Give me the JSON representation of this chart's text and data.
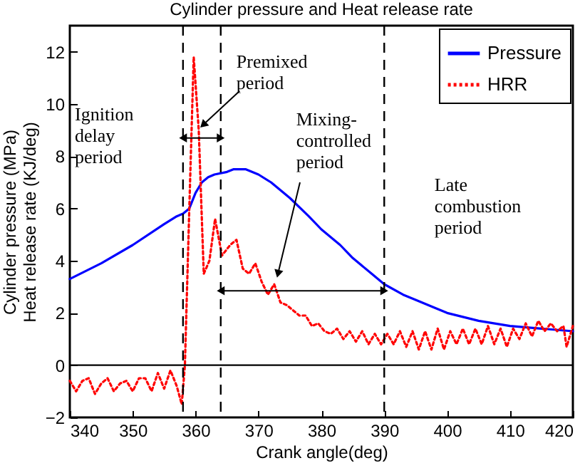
{
  "chart_data": {
    "type": "line",
    "title": "Cylinder pressure and Heat release rate",
    "xlabel": "Crank angle(deg)",
    "ylabel": "Cylinder pressure (MPa)\nHeat release rate (KJ/deg)",
    "xlim": [
      340,
      420
    ],
    "ylim": [
      -2,
      13
    ],
    "xticks": [
      340,
      350,
      360,
      370,
      380,
      390,
      400,
      410,
      420
    ],
    "yticks": [
      -2,
      0,
      2,
      4,
      6,
      8,
      10,
      12
    ],
    "grid": false,
    "legend": "top right",
    "series": [
      {
        "name": "Pressure",
        "color": "#0000ff",
        "line_style": "solid",
        "x": [
          340,
          345,
          350,
          355,
          357,
          358,
          359,
          360,
          361,
          362,
          363,
          365,
          366,
          368,
          370,
          372,
          375,
          378,
          380,
          383,
          385,
          388,
          390,
          393,
          395,
          398,
          400,
          405,
          410,
          415,
          420
        ],
        "values": [
          3.3,
          3.9,
          4.6,
          5.4,
          5.7,
          5.8,
          6.0,
          6.6,
          7.0,
          7.2,
          7.3,
          7.4,
          7.5,
          7.5,
          7.3,
          7.0,
          6.4,
          5.7,
          5.2,
          4.6,
          4.1,
          3.5,
          3.1,
          2.7,
          2.5,
          2.2,
          2.0,
          1.7,
          1.5,
          1.4,
          1.3
        ]
      },
      {
        "name": "HRR",
        "color": "#ff0000",
        "line_style": "dotted",
        "x": [
          340,
          341,
          342,
          343,
          344,
          345,
          346,
          347,
          348,
          349,
          350,
          351,
          352,
          353,
          354,
          355,
          356,
          357,
          357.8,
          358.3,
          359,
          359.7,
          360.5,
          361.3,
          362.2,
          363.1,
          364.2,
          365.5,
          366.5,
          367.5,
          368.5,
          369.5,
          370.5,
          371.5,
          372.5,
          373.5,
          374.5,
          375.5,
          376.5,
          377.5,
          378.5,
          379.5,
          380.5,
          381.5,
          382.5,
          383.5,
          384.5,
          385.5,
          386.5,
          387.5,
          388.5,
          389.5,
          390.5,
          391.5,
          392.5,
          393.5,
          394.5,
          395.5,
          396.5,
          397.5,
          398.5,
          399.5,
          400.5,
          401.5,
          402.5,
          403.5,
          404.5,
          405.5,
          406.5,
          407.5,
          408.5,
          409.5,
          410.5,
          411.5,
          412.5,
          413.5,
          414.5,
          415.5,
          416.5,
          417.5,
          418.5,
          419,
          420
        ],
        "values": [
          -0.6,
          -1.0,
          -0.6,
          -0.5,
          -1.1,
          -0.7,
          -0.5,
          -1.0,
          -0.7,
          -0.6,
          -1.0,
          -0.5,
          -0.5,
          -1.0,
          -0.3,
          -0.9,
          -0.2,
          -0.8,
          -1.5,
          0,
          6,
          11.8,
          9,
          3.5,
          4,
          5.6,
          4.2,
          4.6,
          4.8,
          3.7,
          3.5,
          3.9,
          3.2,
          2.7,
          3.1,
          2.4,
          2.3,
          2.1,
          1.9,
          1.9,
          1.5,
          1.6,
          1.3,
          1.2,
          1.4,
          1.0,
          1.3,
          0.9,
          1.3,
          0.8,
          1.2,
          0.8,
          1.2,
          0.8,
          1.3,
          0.7,
          1.3,
          0.6,
          1.3,
          0.6,
          1.4,
          0.6,
          1.3,
          0.8,
          1.4,
          0.8,
          1.4,
          0.8,
          1.5,
          0.8,
          1.4,
          0.7,
          1.4,
          1.0,
          1.6,
          1.1,
          1.7,
          1.3,
          1.6,
          1.3,
          1.5,
          0.7,
          1.5
        ]
      }
    ],
    "ref_lines": [
      {
        "axis": "y",
        "value": 0,
        "color": "#000000",
        "line_style": "solid"
      },
      {
        "axis": "x",
        "value": 358,
        "color": "#000000",
        "line_style": "dashed"
      },
      {
        "axis": "x",
        "value": 364,
        "color": "#000000",
        "line_style": "dashed"
      },
      {
        "axis": "x",
        "value": 390,
        "color": "#000000",
        "line_style": "dashed"
      }
    ],
    "annotations": [
      "Ignition\ndelay\nperiod",
      {
        "text": "Premixed\nperiod",
        "x": 361.2,
        "y": 9.2
      },
      {
        "text": "Mixing-\ncontrolled\nperiod",
        "x": 373.1,
        "y": 3.5
      },
      "Late\ncombustion\nperiod"
    ]
  }
}
